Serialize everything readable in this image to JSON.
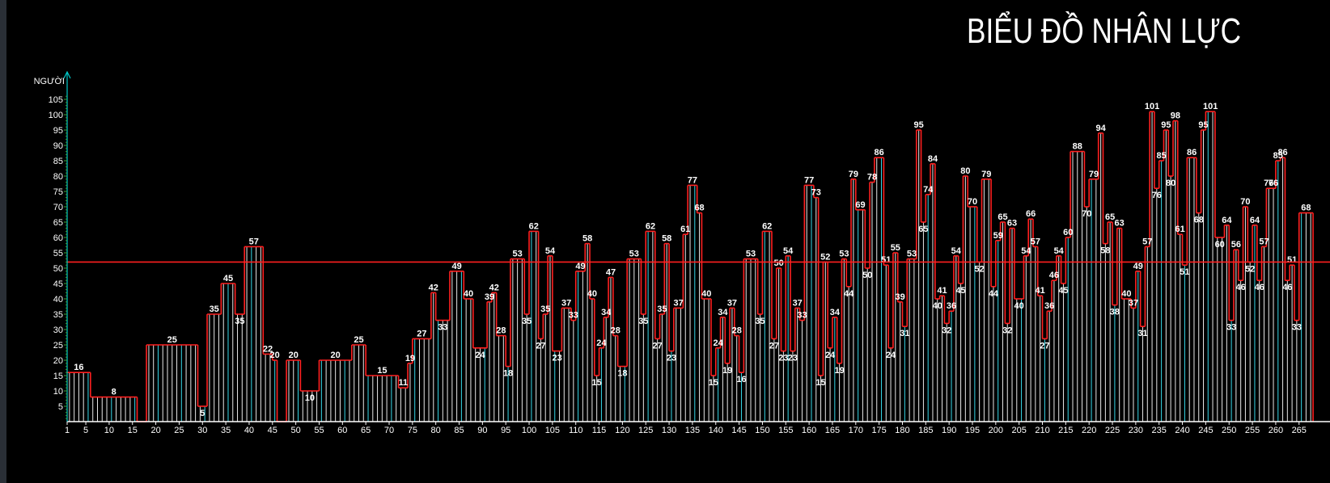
{
  "colors": {
    "background": "#000000",
    "outline": "#ff2020",
    "average_line": "#ff2020",
    "bar_cyan": "#36d8e8",
    "bar_white": "#e8e8e8",
    "y_axis": "#00c8c8"
  },
  "chart_data": {
    "type": "bar",
    "title": "BIỂU ĐỒ NHÂN LỰC",
    "ylabel": "NGƯỜI",
    "xlabel": "",
    "ylim": [
      0,
      110
    ],
    "grid": false,
    "average_line": 52,
    "y_ticks": [
      "5",
      "10",
      "15",
      "20",
      "25",
      "30",
      "35",
      "40",
      "45",
      "50",
      "55",
      "60",
      "65",
      "70",
      "75",
      "80",
      "85",
      "90",
      "95",
      "100",
      "105"
    ],
    "x_tick_labels": [
      "1",
      "5",
      "10",
      "15",
      "20",
      "25",
      "30",
      "35",
      "40",
      "45",
      "50",
      "55",
      "60",
      "65",
      "70",
      "75",
      "80",
      "85",
      "90",
      "95",
      "100",
      "105",
      "110",
      "115",
      "120",
      "125",
      "130",
      "135",
      "140",
      "145",
      "150",
      "155",
      "160",
      "165",
      "170",
      "175",
      "180",
      "185",
      "190",
      "195",
      "200",
      "205",
      "210",
      "215",
      "220",
      "225",
      "230",
      "235",
      "240",
      "245",
      "250",
      "255",
      "260",
      "265"
    ],
    "x_range": [
      1,
      268
    ],
    "segments": [
      {
        "x0": 1,
        "x1": 6,
        "value": 16
      },
      {
        "x0": 6,
        "x1": 16,
        "value": 8
      },
      {
        "x0": 16,
        "x1": 18,
        "value": 0
      },
      {
        "x0": 18,
        "x1": 29,
        "value": 25
      },
      {
        "x0": 29,
        "x1": 31,
        "value": 5
      },
      {
        "x0": 31,
        "x1": 34,
        "value": 35
      },
      {
        "x0": 34,
        "x1": 37,
        "value": 45
      },
      {
        "x0": 37,
        "x1": 39,
        "value": 35
      },
      {
        "x0": 39,
        "x1": 43,
        "value": 57
      },
      {
        "x0": 43,
        "x1": 45,
        "value": 22
      },
      {
        "x0": 45,
        "x1": 46,
        "value": 20
      },
      {
        "x0": 46,
        "x1": 48,
        "value": 0
      },
      {
        "x0": 48,
        "x1": 51,
        "value": 20
      },
      {
        "x0": 51,
        "x1": 55,
        "value": 10
      },
      {
        "x0": 55,
        "x1": 62,
        "value": 20
      },
      {
        "x0": 62,
        "x1": 65,
        "value": 25
      },
      {
        "x0": 65,
        "x1": 72,
        "value": 15
      },
      {
        "x0": 72,
        "x1": 74,
        "value": 11
      },
      {
        "x0": 74,
        "x1": 75,
        "value": 19
      },
      {
        "x0": 75,
        "x1": 79,
        "value": 27
      },
      {
        "x0": 79,
        "x1": 80,
        "value": 42
      },
      {
        "x0": 80,
        "x1": 83,
        "value": 33
      },
      {
        "x0": 83,
        "x1": 86,
        "value": 49
      },
      {
        "x0": 86,
        "x1": 88,
        "value": 40
      },
      {
        "x0": 88,
        "x1": 91,
        "value": 24
      },
      {
        "x0": 91,
        "x1": 92,
        "value": 39
      },
      {
        "x0": 92,
        "x1": 93,
        "value": 42
      },
      {
        "x0": 93,
        "x1": 95,
        "value": 28
      },
      {
        "x0": 95,
        "x1": 96,
        "value": 18
      },
      {
        "x0": 96,
        "x1": 99,
        "value": 53
      },
      {
        "x0": 99,
        "x1": 100,
        "value": 35
      },
      {
        "x0": 100,
        "x1": 102,
        "value": 62
      },
      {
        "x0": 102,
        "x1": 103,
        "value": 27
      },
      {
        "x0": 103,
        "x1": 104,
        "value": 35
      },
      {
        "x0": 104,
        "x1": 105,
        "value": 54
      },
      {
        "x0": 105,
        "x1": 107,
        "value": 23
      },
      {
        "x0": 107,
        "x1": 109,
        "value": 37
      },
      {
        "x0": 109,
        "x1": 110,
        "value": 33
      },
      {
        "x0": 110,
        "x1": 112,
        "value": 49
      },
      {
        "x0": 112,
        "x1": 113,
        "value": 58
      },
      {
        "x0": 113,
        "x1": 114,
        "value": 40
      },
      {
        "x0": 114,
        "x1": 115,
        "value": 15
      },
      {
        "x0": 115,
        "x1": 116,
        "value": 24
      },
      {
        "x0": 116,
        "x1": 117,
        "value": 34
      },
      {
        "x0": 117,
        "x1": 118,
        "value": 47
      },
      {
        "x0": 118,
        "x1": 119,
        "value": 28
      },
      {
        "x0": 119,
        "x1": 121,
        "value": 18
      },
      {
        "x0": 121,
        "x1": 124,
        "value": 53
      },
      {
        "x0": 124,
        "x1": 125,
        "value": 35
      },
      {
        "x0": 125,
        "x1": 127,
        "value": 62
      },
      {
        "x0": 127,
        "x1": 128,
        "value": 27
      },
      {
        "x0": 128,
        "x1": 129,
        "value": 35
      },
      {
        "x0": 129,
        "x1": 130,
        "value": 58
      },
      {
        "x0": 130,
        "x1": 131,
        "value": 23
      },
      {
        "x0": 131,
        "x1": 133,
        "value": 37
      },
      {
        "x0": 133,
        "x1": 134,
        "value": 61
      },
      {
        "x0": 134,
        "x1": 136,
        "value": 77
      },
      {
        "x0": 136,
        "x1": 137,
        "value": 68
      },
      {
        "x0": 137,
        "x1": 139,
        "value": 40
      },
      {
        "x0": 139,
        "x1": 140,
        "value": 15
      },
      {
        "x0": 140,
        "x1": 141,
        "value": 24
      },
      {
        "x0": 141,
        "x1": 142,
        "value": 34
      },
      {
        "x0": 142,
        "x1": 143,
        "value": 19
      },
      {
        "x0": 143,
        "x1": 144,
        "value": 37
      },
      {
        "x0": 144,
        "x1": 145,
        "value": 28
      },
      {
        "x0": 145,
        "x1": 146,
        "value": 16
      },
      {
        "x0": 146,
        "x1": 149,
        "value": 53
      },
      {
        "x0": 149,
        "x1": 150,
        "value": 35
      },
      {
        "x0": 150,
        "x1": 152,
        "value": 62
      },
      {
        "x0": 152,
        "x1": 153,
        "value": 27
      },
      {
        "x0": 153,
        "x1": 154,
        "value": 50
      },
      {
        "x0": 154,
        "x1": 155,
        "value": 23
      },
      {
        "x0": 155,
        "x1": 156,
        "value": 54
      },
      {
        "x0": 156,
        "x1": 157,
        "value": 23
      },
      {
        "x0": 157,
        "x1": 158,
        "value": 37
      },
      {
        "x0": 158,
        "x1": 159,
        "value": 33
      },
      {
        "x0": 159,
        "x1": 161,
        "value": 77
      },
      {
        "x0": 161,
        "x1": 162,
        "value": 73
      },
      {
        "x0": 162,
        "x1": 163,
        "value": 15
      },
      {
        "x0": 163,
        "x1": 164,
        "value": 52
      },
      {
        "x0": 164,
        "x1": 165,
        "value": 24
      },
      {
        "x0": 165,
        "x1": 166,
        "value": 34
      },
      {
        "x0": 166,
        "x1": 167,
        "value": 19
      },
      {
        "x0": 167,
        "x1": 168,
        "value": 53
      },
      {
        "x0": 168,
        "x1": 169,
        "value": 44
      },
      {
        "x0": 169,
        "x1": 170,
        "value": 79
      },
      {
        "x0": 170,
        "x1": 172,
        "value": 69
      },
      {
        "x0": 172,
        "x1": 173,
        "value": 50
      },
      {
        "x0": 173,
        "x1": 174,
        "value": 78
      },
      {
        "x0": 174,
        "x1": 176,
        "value": 86
      },
      {
        "x0": 176,
        "x1": 177,
        "value": 51
      },
      {
        "x0": 177,
        "x1": 178,
        "value": 24
      },
      {
        "x0": 178,
        "x1": 179,
        "value": 55
      },
      {
        "x0": 179,
        "x1": 180,
        "value": 39
      },
      {
        "x0": 180,
        "x1": 181,
        "value": 31
      },
      {
        "x0": 181,
        "x1": 183,
        "value": 53
      },
      {
        "x0": 183,
        "x1": 184,
        "value": 95
      },
      {
        "x0": 184,
        "x1": 185,
        "value": 65
      },
      {
        "x0": 185,
        "x1": 186,
        "value": 74
      },
      {
        "x0": 186,
        "x1": 187,
        "value": 84
      },
      {
        "x0": 187,
        "x1": 188,
        "value": 40
      },
      {
        "x0": 188,
        "x1": 189,
        "value": 41
      },
      {
        "x0": 189,
        "x1": 190,
        "value": 32
      },
      {
        "x0": 190,
        "x1": 191,
        "value": 36
      },
      {
        "x0": 191,
        "x1": 192,
        "value": 54
      },
      {
        "x0": 192,
        "x1": 193,
        "value": 45
      },
      {
        "x0": 193,
        "x1": 194,
        "value": 80
      },
      {
        "x0": 194,
        "x1": 196,
        "value": 70
      },
      {
        "x0": 196,
        "x1": 197,
        "value": 52
      },
      {
        "x0": 197,
        "x1": 199,
        "value": 79
      },
      {
        "x0": 199,
        "x1": 200,
        "value": 44
      },
      {
        "x0": 200,
        "x1": 201,
        "value": 59
      },
      {
        "x0": 201,
        "x1": 202,
        "value": 65
      },
      {
        "x0": 202,
        "x1": 203,
        "value": 32
      },
      {
        "x0": 203,
        "x1": 204,
        "value": 63
      },
      {
        "x0": 204,
        "x1": 206,
        "value": 40
      },
      {
        "x0": 206,
        "x1": 207,
        "value": 54
      },
      {
        "x0": 207,
        "x1": 208,
        "value": 66
      },
      {
        "x0": 208,
        "x1": 209,
        "value": 57
      },
      {
        "x0": 209,
        "x1": 210,
        "value": 41
      },
      {
        "x0": 210,
        "x1": 211,
        "value": 27
      },
      {
        "x0": 211,
        "x1": 212,
        "value": 36
      },
      {
        "x0": 212,
        "x1": 213,
        "value": 46
      },
      {
        "x0": 213,
        "x1": 214,
        "value": 54
      },
      {
        "x0": 214,
        "x1": 215,
        "value": 45
      },
      {
        "x0": 215,
        "x1": 216,
        "value": 60
      },
      {
        "x0": 216,
        "x1": 219,
        "value": 88
      },
      {
        "x0": 219,
        "x1": 220,
        "value": 70
      },
      {
        "x0": 220,
        "x1": 222,
        "value": 79
      },
      {
        "x0": 222,
        "x1": 223,
        "value": 94
      },
      {
        "x0": 223,
        "x1": 224,
        "value": 58
      },
      {
        "x0": 224,
        "x1": 225,
        "value": 65
      },
      {
        "x0": 225,
        "x1": 226,
        "value": 38
      },
      {
        "x0": 226,
        "x1": 227,
        "value": 63
      },
      {
        "x0": 227,
        "x1": 229,
        "value": 40
      },
      {
        "x0": 229,
        "x1": 230,
        "value": 37
      },
      {
        "x0": 230,
        "x1": 231,
        "value": 49
      },
      {
        "x0": 231,
        "x1": 232,
        "value": 31
      },
      {
        "x0": 232,
        "x1": 233,
        "value": 57
      },
      {
        "x0": 233,
        "x1": 234,
        "value": 101
      },
      {
        "x0": 234,
        "x1": 235,
        "value": 76
      },
      {
        "x0": 235,
        "x1": 236,
        "value": 85
      },
      {
        "x0": 236,
        "x1": 237,
        "value": 95
      },
      {
        "x0": 237,
        "x1": 238,
        "value": 80
      },
      {
        "x0": 238,
        "x1": 239,
        "value": 98
      },
      {
        "x0": 239,
        "x1": 240,
        "value": 61
      },
      {
        "x0": 240,
        "x1": 241,
        "value": 51
      },
      {
        "x0": 241,
        "x1": 243,
        "value": 86
      },
      {
        "x0": 243,
        "x1": 244,
        "value": 68
      },
      {
        "x0": 244,
        "x1": 245,
        "value": 95
      },
      {
        "x0": 245,
        "x1": 247,
        "value": 101
      },
      {
        "x0": 247,
        "x1": 249,
        "value": 60
      },
      {
        "x0": 249,
        "x1": 250,
        "value": 64
      },
      {
        "x0": 250,
        "x1": 251,
        "value": 33
      },
      {
        "x0": 251,
        "x1": 252,
        "value": 56
      },
      {
        "x0": 252,
        "x1": 253,
        "value": 46
      },
      {
        "x0": 253,
        "x1": 254,
        "value": 70
      },
      {
        "x0": 254,
        "x1": 255,
        "value": 52
      },
      {
        "x0": 255,
        "x1": 256,
        "value": 64
      },
      {
        "x0": 256,
        "x1": 257,
        "value": 46
      },
      {
        "x0": 257,
        "x1": 258,
        "value": 57
      },
      {
        "x0": 258,
        "x1": 259,
        "value": 76
      },
      {
        "x0": 259,
        "x1": 260,
        "value": 76
      },
      {
        "x0": 260,
        "x1": 261,
        "value": 85
      },
      {
        "x0": 261,
        "x1": 262,
        "value": 86
      },
      {
        "x0": 262,
        "x1": 263,
        "value": 46
      },
      {
        "x0": 263,
        "x1": 264,
        "value": 51
      },
      {
        "x0": 264,
        "x1": 265,
        "value": 33
      },
      {
        "x0": 265,
        "x1": 268,
        "value": 68
      }
    ]
  }
}
